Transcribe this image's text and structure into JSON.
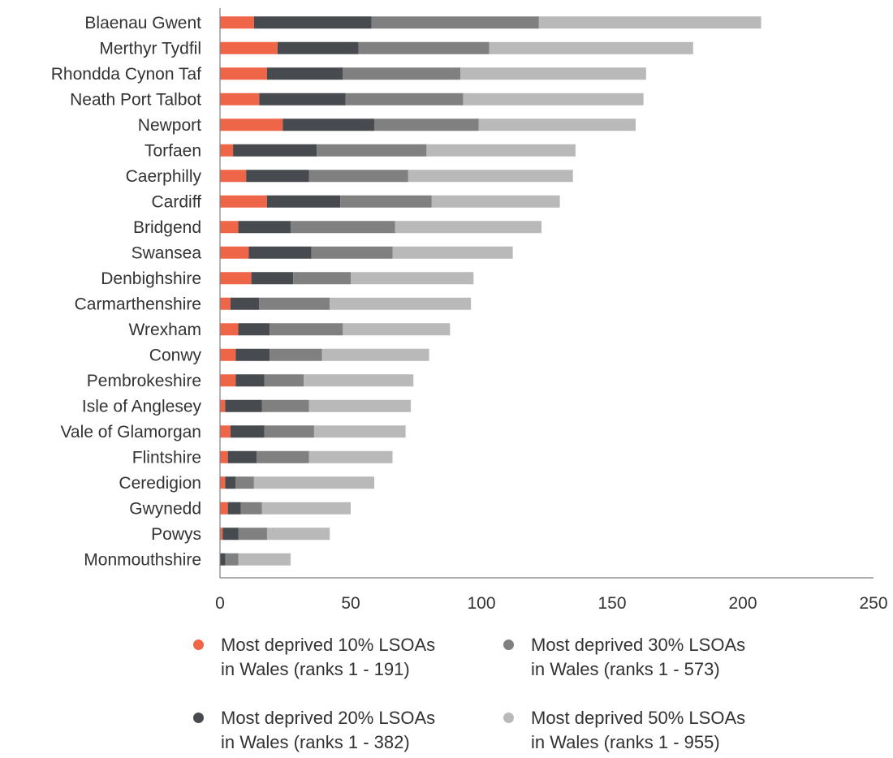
{
  "chart_data": {
    "type": "bar",
    "orientation": "horizontal",
    "stacked": true,
    "categories": [
      "Blaenau Gwent",
      "Merthyr Tydfil",
      "Rhondda Cynon Taf",
      "Neath Port Talbot",
      "Newport",
      "Torfaen",
      "Caerphilly",
      "Cardiff",
      "Bridgend",
      "Swansea",
      "Denbighshire",
      "Carmarthenshire",
      "Wrexham",
      "Conwy",
      "Pembrokeshire",
      "Isle of Anglesey",
      "Vale of Glamorgan",
      "Flintshire",
      "Ceredigion",
      "Gwynedd",
      "Powys",
      "Monmouthshire"
    ],
    "series": [
      {
        "name": "Most deprived 10% LSOAs in Wales (ranks 1 - 191)",
        "color": "#ef6548",
        "values": [
          13,
          22,
          18,
          15,
          24,
          5,
          10,
          18,
          7,
          11,
          12,
          4,
          7,
          6,
          6,
          2,
          4,
          3,
          2,
          3,
          1,
          0
        ]
      },
      {
        "name": "Most deprived 20% LSOAs in Wales (ranks 1 - 382)",
        "color": "#474a4e",
        "values": [
          45,
          31,
          29,
          33,
          35,
          32,
          24,
          28,
          20,
          24,
          16,
          11,
          12,
          13,
          11,
          14,
          13,
          11,
          4,
          5,
          6,
          2
        ]
      },
      {
        "name": "Most deprived 30% LSOAs in Wales (ranks 1 - 573)",
        "color": "#808080",
        "values": [
          64,
          50,
          45,
          45,
          40,
          42,
          38,
          35,
          40,
          31,
          22,
          27,
          28,
          20,
          15,
          18,
          19,
          20,
          7,
          8,
          11,
          5
        ]
      },
      {
        "name": "Most deprived 50% LSOAs in Wales (ranks 1 - 955)",
        "color": "#b9b9b9",
        "values": [
          85,
          78,
          71,
          69,
          60,
          57,
          63,
          49,
          56,
          46,
          47,
          54,
          41,
          41,
          42,
          39,
          35,
          32,
          46,
          34,
          24,
          20
        ]
      }
    ],
    "xlim": [
      0,
      250
    ],
    "xticks": [
      0,
      50,
      100,
      150,
      200,
      250
    ],
    "title": "",
    "xlabel": "",
    "ylabel": "",
    "grid": false,
    "legend_position": "bottom"
  },
  "legend": [
    {
      "line1": "Most deprived 10% LSOAs",
      "line2": "in Wales (ranks 1 - 191)",
      "color": "#ef6548"
    },
    {
      "line1": "Most deprived 30% LSOAs",
      "line2": "in Wales (ranks 1 - 573)",
      "color": "#808080"
    },
    {
      "line1": "Most deprived 20% LSOAs",
      "line2": "in Wales (ranks 1 - 382)",
      "color": "#474a4e"
    },
    {
      "line1": "Most deprived 50% LSOAs",
      "line2": "in Wales (ranks 1 - 955)",
      "color": "#b9b9b9"
    }
  ]
}
